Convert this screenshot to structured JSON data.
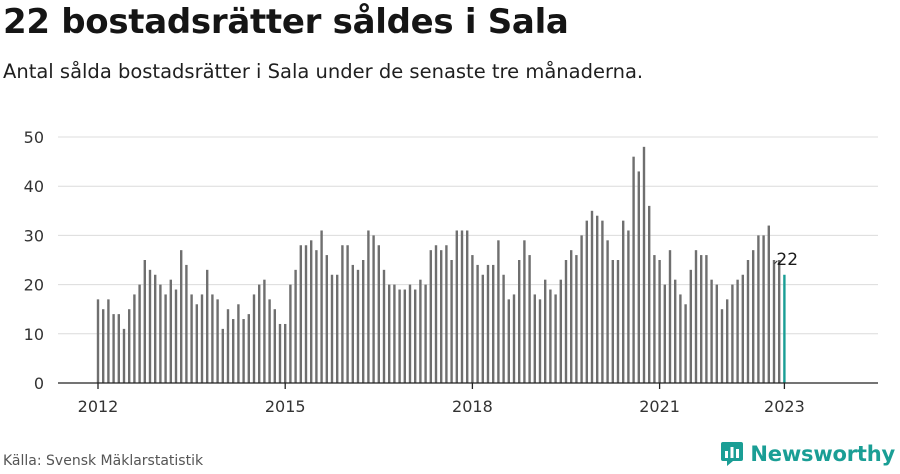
{
  "header": {
    "title": "22 bostadsrätter såldes i Sala",
    "subtitle": "Antal sålda bostadsrätter i Sala under de senaste tre månaderna."
  },
  "footer": {
    "source": "Källa: Svensk Mäklarstatistik",
    "brand": "Newsworthy"
  },
  "colors": {
    "bar": "#6f6f6f",
    "highlight": "#1a9e95",
    "grid": "#dcdcdc",
    "axis": "#222222",
    "brand": "#1a9e95"
  },
  "chart_data": {
    "type": "bar",
    "xlabel": "",
    "ylabel": "",
    "ylim": [
      0,
      50
    ],
    "yticks": [
      0,
      10,
      20,
      30,
      40,
      50
    ],
    "xticks": [
      "2012",
      "2015",
      "2018",
      "2021",
      "2023"
    ],
    "grid": true,
    "highlight_label": "22",
    "series": [
      {
        "values": [
          17,
          15,
          17,
          14,
          14,
          11,
          15,
          18,
          20,
          25,
          23,
          22,
          20,
          18,
          21,
          19,
          27,
          24,
          18,
          16,
          18,
          23,
          18,
          17,
          11,
          15,
          13,
          16,
          13,
          14,
          18,
          20,
          21,
          17,
          15,
          12,
          12,
          20,
          23,
          28,
          28,
          29,
          27,
          31,
          26,
          22,
          22,
          28,
          28,
          24,
          23,
          25,
          31,
          30,
          28,
          23,
          20,
          20,
          19,
          19,
          20,
          19,
          21,
          20,
          27,
          28,
          27,
          28,
          25,
          31,
          31,
          31,
          26,
          24,
          22,
          24,
          24,
          29,
          22,
          17,
          18,
          25,
          29,
          26,
          18,
          17,
          21,
          19,
          18,
          21,
          25,
          27,
          26,
          30,
          33,
          35,
          34,
          33,
          29,
          25,
          25,
          33,
          31,
          46,
          43,
          48,
          36,
          26,
          25,
          20,
          27,
          21,
          18,
          16,
          23,
          27,
          26,
          26,
          21,
          20,
          15,
          17,
          20,
          21,
          22,
          25,
          27,
          30,
          30,
          32,
          25,
          25,
          22
        ]
      }
    ]
  }
}
